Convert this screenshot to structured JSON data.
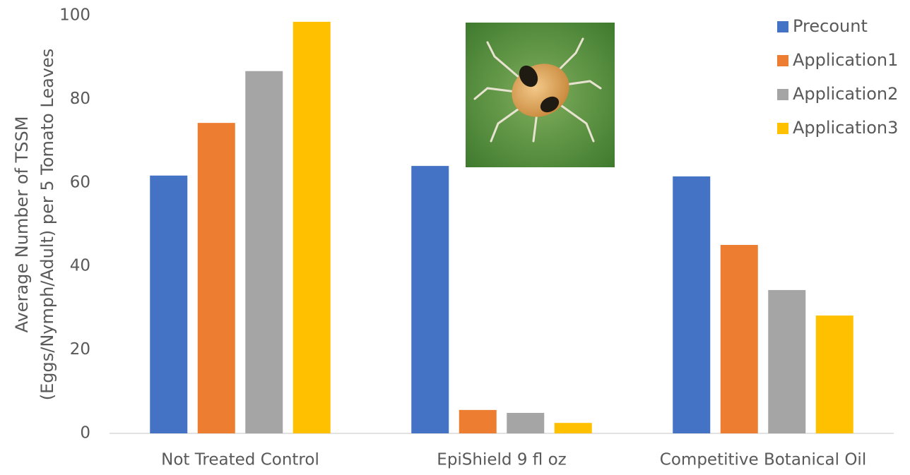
{
  "chart_data": {
    "type": "bar",
    "ylabel": [
      "Average Number of TSSM",
      "(Eggs/Nymph/Adult) per 5 Tomato Leaves"
    ],
    "categories": [
      "Not Treated Control",
      "EpiShield 9 fl oz",
      "Competitive Botanical Oil"
    ],
    "series": [
      {
        "name": "Precount",
        "color": "#4472c4",
        "values": [
          61.7,
          64.0,
          61.5
        ]
      },
      {
        "name": "Application1",
        "color": "#ed7d31",
        "values": [
          74.3,
          5.6,
          45.1
        ]
      },
      {
        "name": "Application2",
        "color": "#a5a5a5",
        "values": [
          86.7,
          4.9,
          34.3
        ]
      },
      {
        "name": "Application3",
        "color": "#ffc000",
        "values": [
          98.5,
          2.5,
          28.2
        ]
      }
    ],
    "ylim": [
      0,
      100
    ],
    "yticks": [
      0,
      20,
      40,
      60,
      80,
      100
    ],
    "grid": false,
    "legend": "top-right"
  }
}
